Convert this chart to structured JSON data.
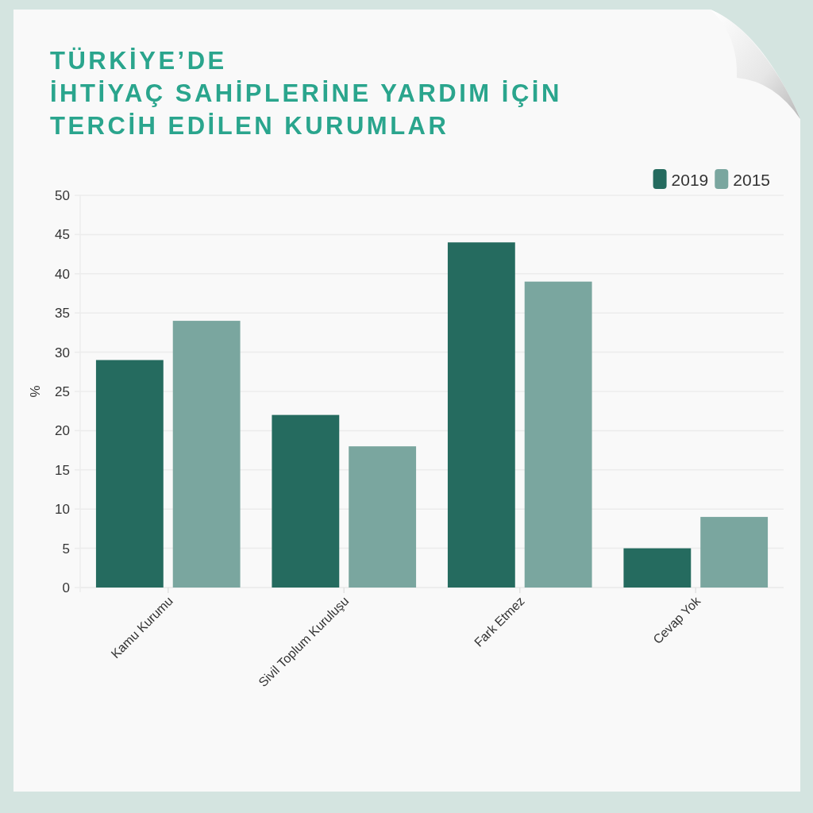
{
  "chart_data": {
    "type": "bar",
    "title": "TÜRKİYE’DE\nİHTİYAÇ SAHİPLERİNE YARDIM İÇİN\nTERCİH EDİLEN KURUMLAR",
    "ylabel": "%",
    "categories": [
      "Kamu Kurumu",
      "Sivil Toplum Kuruluşu",
      "Fark Etmez",
      "Cevap Yok"
    ],
    "series": [
      {
        "name": "2019",
        "color": "#256b5f",
        "values": [
          29,
          22,
          44,
          5
        ]
      },
      {
        "name": "2015",
        "color": "#7aa69f",
        "values": [
          34,
          18,
          39,
          9
        ]
      }
    ],
    "ylim": [
      0,
      50
    ],
    "yticks": [
      0,
      5,
      10,
      15,
      20,
      25,
      30,
      35,
      40,
      45,
      50
    ],
    "grid": "y",
    "legend": "top right"
  }
}
